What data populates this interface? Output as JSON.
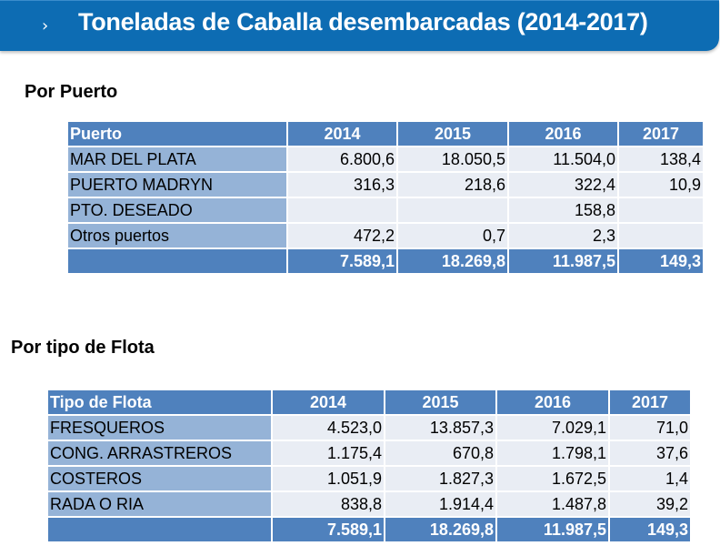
{
  "header": {
    "chevron_icon": "chevron-right-icon",
    "chevron": "›",
    "title": "Toneladas de Caballa desembarcadas (2014-2017)",
    "background": "#0d6cb3"
  },
  "colors": {
    "header_row": "#4f81bd",
    "label_col": "#95b3d7",
    "value_cell": "#e9edf4"
  },
  "por_puerto": {
    "heading": "Por Puerto",
    "columns": [
      "Puerto",
      "2014",
      "2015",
      "2016",
      "2017"
    ],
    "rows": [
      {
        "label": "MAR DEL PLATA",
        "values": [
          "6.800,6",
          "18.050,5",
          "11.504,0",
          "138,4"
        ]
      },
      {
        "label": "PUERTO MADRYN",
        "values": [
          "316,3",
          "218,6",
          "322,4",
          "10,9"
        ]
      },
      {
        "label": "PTO. DESEADO",
        "values": [
          "",
          "",
          "158,8",
          ""
        ]
      },
      {
        "label": "Otros puertos",
        "values": [
          "472,2",
          "0,7",
          "2,3",
          ""
        ]
      }
    ],
    "total": {
      "label": "",
      "values": [
        "7.589,1",
        "18.269,8",
        "11.987,5",
        "149,3"
      ]
    }
  },
  "por_flota": {
    "heading": "Por tipo de Flota",
    "columns": [
      "Tipo de Flota",
      "2014",
      "2015",
      "2016",
      "2017"
    ],
    "rows": [
      {
        "label": "FRESQUEROS",
        "values": [
          "4.523,0",
          "13.857,3",
          "7.029,1",
          "71,0"
        ]
      },
      {
        "label": "CONG. ARRASTREROS",
        "values": [
          "1.175,4",
          "670,8",
          "1.798,1",
          "37,6"
        ]
      },
      {
        "label": "COSTEROS",
        "values": [
          "1.051,9",
          "1.827,3",
          "1.672,5",
          "1,4"
        ]
      },
      {
        "label": "RADA O RIA",
        "values": [
          "838,8",
          "1.914,4",
          "1.487,8",
          "39,2"
        ]
      }
    ],
    "total": {
      "label": "",
      "values": [
        "7.589,1",
        "18.269,8",
        "11.987,5",
        "149,3"
      ]
    }
  }
}
